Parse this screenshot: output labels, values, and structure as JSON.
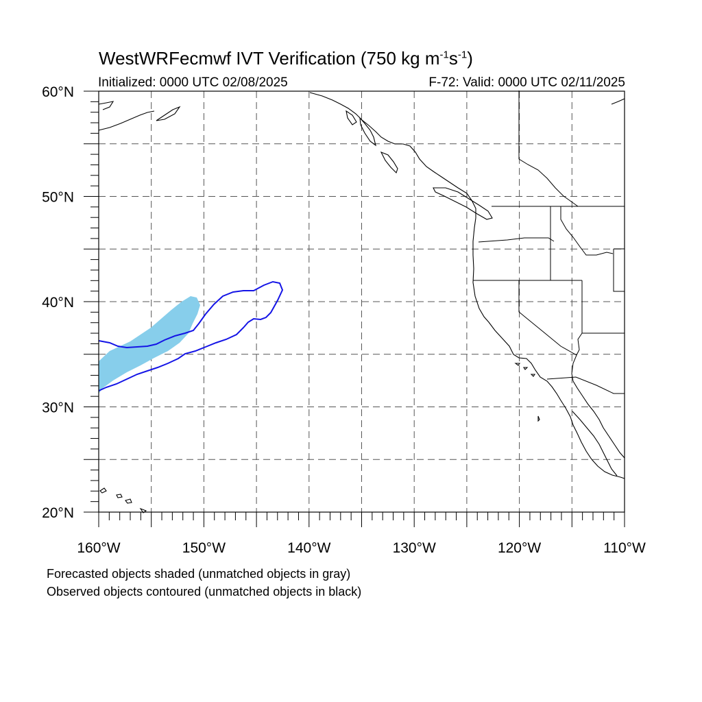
{
  "title": {
    "main": "WestWRFecmwf IVT Verification (750 kg m",
    "exp1": "-1",
    "mid": "s",
    "exp2": "-1",
    "end": ")"
  },
  "initialized": "Initialized: 0000 UTC 02/08/2025",
  "valid": "F-72: Valid: 0000 UTC 02/11/2025",
  "lat_labels": [
    "20°N",
    "30°N",
    "40°N",
    "50°N",
    "60°N"
  ],
  "lon_labels": [
    "160°W",
    "150°W",
    "140°W",
    "130°W",
    "120°W",
    "110°W"
  ],
  "footer": {
    "line1": "Forecasted objects shaded (unmatched objects in gray)",
    "line2": "Observed objects contoured (unmatched objects in black)"
  },
  "map": {
    "lon_range": [
      -160,
      -110
    ],
    "lat_range": [
      20,
      60
    ],
    "grid_spacing_deg": 5,
    "colors": {
      "forecast_fill": "#87ceeb",
      "observed_contour": "#1414e6",
      "coastline": "#000000",
      "grid": "#555555"
    }
  }
}
